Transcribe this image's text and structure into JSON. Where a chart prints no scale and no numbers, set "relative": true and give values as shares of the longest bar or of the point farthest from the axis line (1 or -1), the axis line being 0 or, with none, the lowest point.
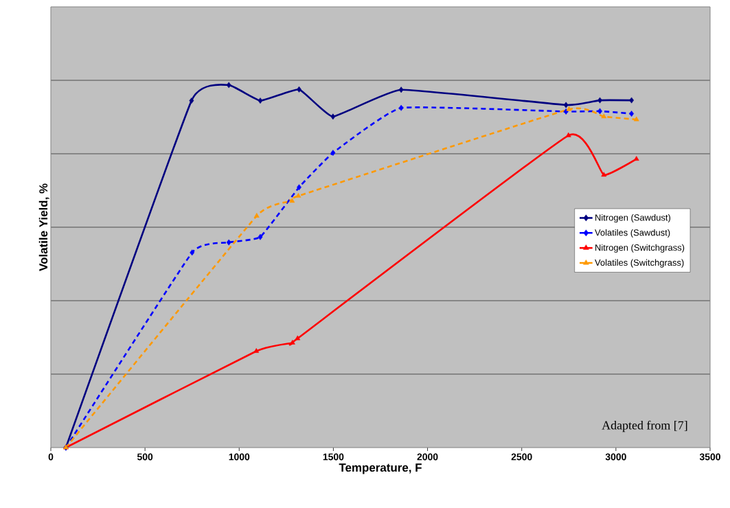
{
  "chart_data": {
    "type": "line",
    "xlabel": "Temperature, F",
    "ylabel": "Volatile Yield, %",
    "relative": true,
    "xlim": [
      0,
      3500
    ],
    "xticks": [
      0,
      500,
      1000,
      1500,
      2000,
      2500,
      3000,
      3500
    ],
    "grid": "y",
    "legend": "right",
    "series": [
      {
        "name": "Nitrogen (Sawdust)",
        "color": "#000080",
        "marker": "diamond",
        "line_style": "solid",
        "x": [
          80,
          747,
          945,
          1112,
          1318,
          1498,
          1860,
          2735,
          2915,
          3083
        ],
        "values": [
          0,
          0.957,
          1.0,
          0.957,
          0.988,
          0.913,
          0.987,
          0.945,
          0.958,
          0.958
        ]
      },
      {
        "name": "Volatiles (Sawdust)",
        "color": "#0000ff",
        "marker": "diamond",
        "line_style": "dashed",
        "x": [
          80,
          750,
          945,
          1112,
          1318,
          1498,
          1860,
          2735,
          2915,
          3083
        ],
        "values": [
          0,
          0.538,
          0.566,
          0.581,
          0.718,
          0.813,
          0.937,
          0.927,
          0.928,
          0.921
        ]
      },
      {
        "name": "Nitrogen (Switchgrass)",
        "color": "#ff0000",
        "marker": "triangle",
        "line_style": "solid",
        "x": [
          80,
          1091,
          1283,
          1310,
          2748,
          2936,
          3109
        ],
        "values": [
          0,
          0.266,
          0.289,
          0.301,
          0.861,
          0.752,
          0.796
        ]
      },
      {
        "name": "Volatiles (Switchgrass)",
        "color": "#ff9900",
        "marker": "triangle",
        "line_style": "dashed",
        "x": [
          80,
          1093,
          1281,
          1314,
          2751,
          2936,
          3109
        ],
        "values": [
          0,
          0.639,
          0.68,
          0.694,
          0.933,
          0.913,
          0.905
        ]
      }
    ],
    "annotations": [
      "Adapted from [7]"
    ]
  }
}
